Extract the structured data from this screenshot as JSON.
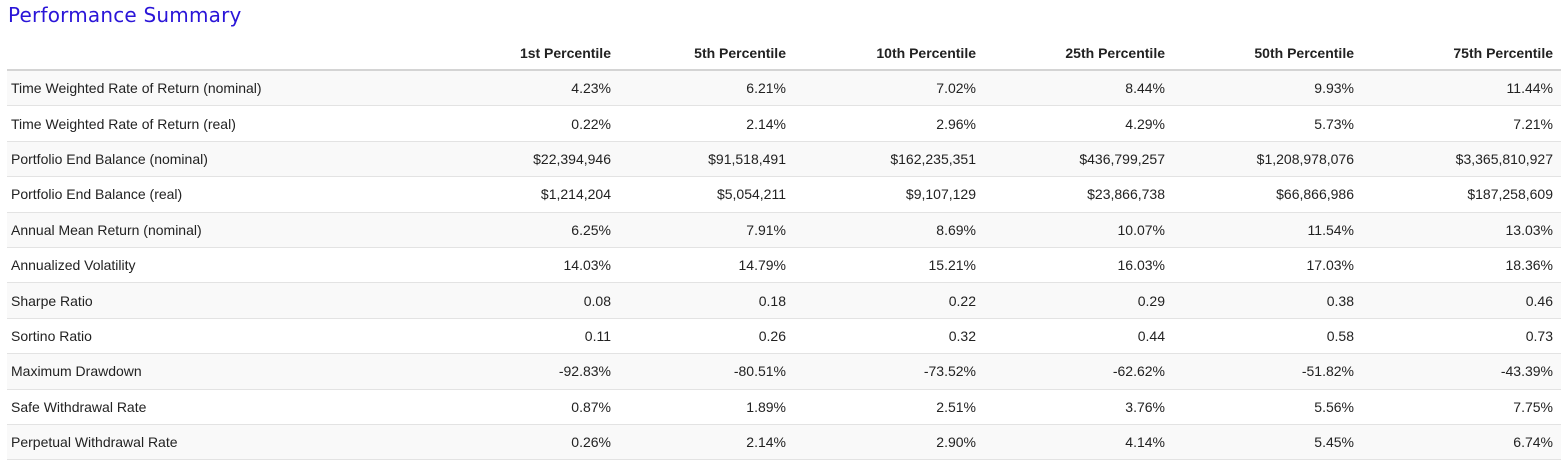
{
  "title": "Performance Summary",
  "columns": [
    "",
    "1st Percentile",
    "5th Percentile",
    "10th Percentile",
    "25th Percentile",
    "50th Percentile",
    "75th Percentile"
  ],
  "rows": [
    {
      "label": "Time Weighted Rate of Return (nominal)",
      "values": [
        "4.23%",
        "6.21%",
        "7.02%",
        "8.44%",
        "9.93%",
        "11.44%"
      ]
    },
    {
      "label": "Time Weighted Rate of Return (real)",
      "values": [
        "0.22%",
        "2.14%",
        "2.96%",
        "4.29%",
        "5.73%",
        "7.21%"
      ]
    },
    {
      "label": "Portfolio End Balance (nominal)",
      "values": [
        "$22,394,946",
        "$91,518,491",
        "$162,235,351",
        "$436,799,257",
        "$1,208,978,076",
        "$3,365,810,927"
      ]
    },
    {
      "label": "Portfolio End Balance (real)",
      "values": [
        "$1,214,204",
        "$5,054,211",
        "$9,107,129",
        "$23,866,738",
        "$66,866,986",
        "$187,258,609"
      ]
    },
    {
      "label": "Annual Mean Return (nominal)",
      "values": [
        "6.25%",
        "7.91%",
        "8.69%",
        "10.07%",
        "11.54%",
        "13.03%"
      ]
    },
    {
      "label": "Annualized Volatility",
      "values": [
        "14.03%",
        "14.79%",
        "15.21%",
        "16.03%",
        "17.03%",
        "18.36%"
      ]
    },
    {
      "label": "Sharpe Ratio",
      "values": [
        "0.08",
        "0.18",
        "0.22",
        "0.29",
        "0.38",
        "0.46"
      ]
    },
    {
      "label": "Sortino Ratio",
      "values": [
        "0.11",
        "0.26",
        "0.32",
        "0.44",
        "0.58",
        "0.73"
      ]
    },
    {
      "label": "Maximum Drawdown",
      "values": [
        "-92.83%",
        "-80.51%",
        "-73.52%",
        "-62.62%",
        "-51.82%",
        "-43.39%"
      ]
    },
    {
      "label": "Safe Withdrawal Rate",
      "values": [
        "0.87%",
        "1.89%",
        "2.51%",
        "3.76%",
        "5.56%",
        "7.75%"
      ]
    },
    {
      "label": "Perpetual Withdrawal Rate",
      "values": [
        "0.26%",
        "2.14%",
        "2.90%",
        "4.14%",
        "5.45%",
        "6.74%"
      ]
    }
  ]
}
